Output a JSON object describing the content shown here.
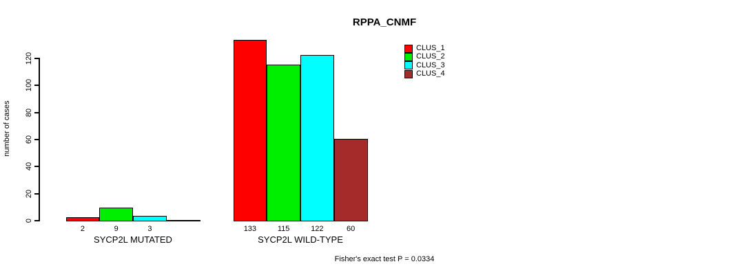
{
  "chart_data": {
    "type": "bar",
    "title": "RPPA_CNMF",
    "ylabel": "number of cases",
    "xlabel": "",
    "categories": [
      "SYCP2L MUTATED",
      "SYCP2L WILD-TYPE"
    ],
    "series": [
      {
        "name": "CLUS_1",
        "color": "#ff0000",
        "values": [
          2,
          133
        ]
      },
      {
        "name": "CLUS_2",
        "color": "#00ee00",
        "values": [
          9,
          115
        ]
      },
      {
        "name": "CLUS_3",
        "color": "#00ffff",
        "values": [
          3,
          122
        ]
      },
      {
        "name": "CLUS_4",
        "color": "#a52a2a",
        "values": [
          0,
          60
        ]
      }
    ],
    "yticks": [
      0,
      20,
      40,
      60,
      80,
      100,
      120
    ],
    "ylim": [
      0,
      136
    ],
    "grid": false,
    "legend_position": "top-right",
    "legend_entries": [
      "CLUS_1",
      "CLUS_2",
      "CLUS_3",
      "CLUS_4"
    ],
    "bar_value_labels": {
      "SYCP2L MUTATED": [
        "2",
        "9",
        "3",
        ""
      ],
      "SYCP2L WILD-TYPE": [
        "133",
        "115",
        "122",
        "60"
      ]
    },
    "annotation": "Fisher's exact test P = 0.0334"
  }
}
